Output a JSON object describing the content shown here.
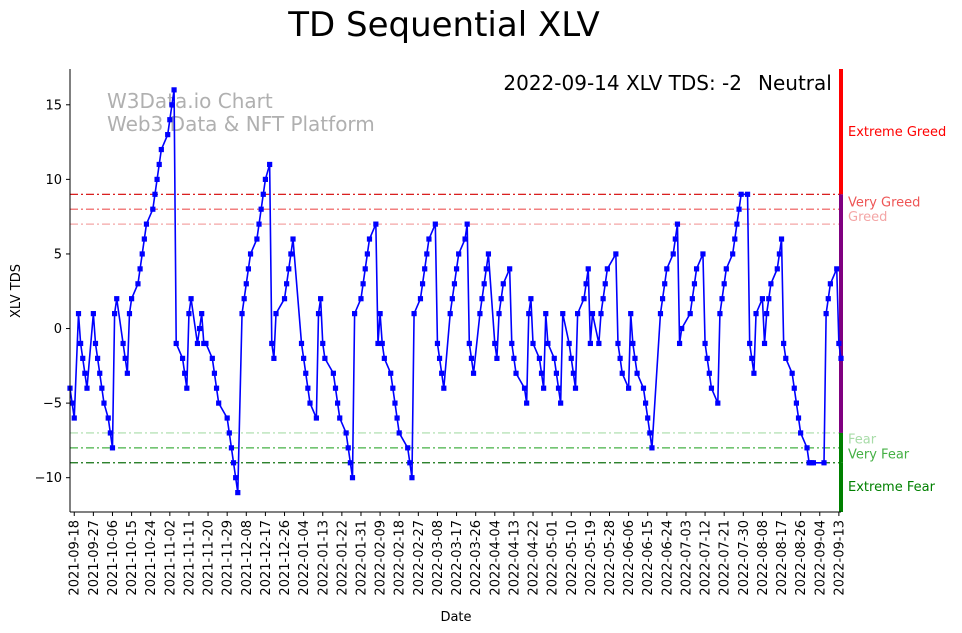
{
  "chart_data": {
    "type": "line",
    "title": "TD Sequential XLV",
    "xlabel": "Date",
    "ylabel": "XLV TDS",
    "ylim": [
      -12.3,
      17.4
    ],
    "yticks": [
      15,
      10,
      5,
      0,
      -5,
      -10
    ],
    "x_start": "2021-09-16",
    "x_end": "2022-09-14",
    "xticks": [
      "2021-09-18",
      "2021-09-27",
      "2021-10-06",
      "2021-10-15",
      "2021-10-24",
      "2021-11-02",
      "2021-11-11",
      "2021-11-20",
      "2021-11-29",
      "2021-12-08",
      "2021-12-17",
      "2021-12-26",
      "2022-01-04",
      "2022-01-13",
      "2022-01-22",
      "2022-01-31",
      "2022-02-09",
      "2022-02-18",
      "2022-02-27",
      "2022-03-08",
      "2022-03-17",
      "2022-03-26",
      "2022-04-04",
      "2022-04-13",
      "2022-04-22",
      "2022-05-01",
      "2022-05-10",
      "2022-05-19",
      "2022-05-28",
      "2022-06-06",
      "2022-06-15",
      "2022-06-24",
      "2022-07-03",
      "2022-07-12",
      "2022-07-21",
      "2022-07-30",
      "2022-08-08",
      "2022-08-17",
      "2022-08-26",
      "2022-09-04",
      "2022-09-13"
    ],
    "series": [
      {
        "name": "XLV TDS",
        "color": "#0000ff",
        "marker": "square",
        "points": [
          [
            "2021-09-16",
            -4
          ],
          [
            "2021-09-17",
            -5
          ],
          [
            "2021-09-18",
            -6
          ],
          [
            "2021-09-20",
            1
          ],
          [
            "2021-09-21",
            -1
          ],
          [
            "2021-09-22",
            -2
          ],
          [
            "2021-09-23",
            -3
          ],
          [
            "2021-09-24",
            -4
          ],
          [
            "2021-09-27",
            1
          ],
          [
            "2021-09-28",
            -1
          ],
          [
            "2021-09-29",
            -2
          ],
          [
            "2021-09-30",
            -3
          ],
          [
            "2021-10-01",
            -4
          ],
          [
            "2021-10-02",
            -5
          ],
          [
            "2021-10-04",
            -6
          ],
          [
            "2021-10-05",
            -7
          ],
          [
            "2021-10-06",
            -8
          ],
          [
            "2021-10-07",
            1
          ],
          [
            "2021-10-08",
            2
          ],
          [
            "2021-10-11",
            -1
          ],
          [
            "2021-10-12",
            -2
          ],
          [
            "2021-10-13",
            -3
          ],
          [
            "2021-10-14",
            1
          ],
          [
            "2021-10-15",
            2
          ],
          [
            "2021-10-18",
            3
          ],
          [
            "2021-10-19",
            4
          ],
          [
            "2021-10-20",
            5
          ],
          [
            "2021-10-21",
            6
          ],
          [
            "2021-10-22",
            7
          ],
          [
            "2021-10-25",
            8
          ],
          [
            "2021-10-26",
            9
          ],
          [
            "2021-10-27",
            10
          ],
          [
            "2021-10-28",
            11
          ],
          [
            "2021-10-29",
            12
          ],
          [
            "2021-11-01",
            13
          ],
          [
            "2021-11-02",
            14
          ],
          [
            "2021-11-03",
            15
          ],
          [
            "2021-11-04",
            16
          ],
          [
            "2021-11-05",
            -1
          ],
          [
            "2021-11-08",
            -2
          ],
          [
            "2021-11-09",
            -3
          ],
          [
            "2021-11-10",
            -4
          ],
          [
            "2021-11-11",
            1
          ],
          [
            "2021-11-12",
            2
          ],
          [
            "2021-11-15",
            -1
          ],
          [
            "2021-11-16",
            0
          ],
          [
            "2021-11-17",
            1
          ],
          [
            "2021-11-18",
            -1
          ],
          [
            "2021-11-19",
            -1
          ],
          [
            "2021-11-22",
            -2
          ],
          [
            "2021-11-23",
            -3
          ],
          [
            "2021-11-24",
            -4
          ],
          [
            "2021-11-25",
            -5
          ],
          [
            "2021-11-29",
            -6
          ],
          [
            "2021-11-30",
            -7
          ],
          [
            "2021-12-01",
            -8
          ],
          [
            "2021-12-02",
            -9
          ],
          [
            "2021-12-03",
            -10
          ],
          [
            "2021-12-04",
            -11
          ],
          [
            "2021-12-06",
            1
          ],
          [
            "2021-12-07",
            2
          ],
          [
            "2021-12-08",
            3
          ],
          [
            "2021-12-09",
            4
          ],
          [
            "2021-12-10",
            5
          ],
          [
            "2021-12-13",
            6
          ],
          [
            "2021-12-14",
            7
          ],
          [
            "2021-12-15",
            8
          ],
          [
            "2021-12-16",
            9
          ],
          [
            "2021-12-17",
            10
          ],
          [
            "2021-12-19",
            11
          ],
          [
            "2021-12-20",
            -1
          ],
          [
            "2021-12-21",
            -2
          ],
          [
            "2021-12-22",
            1
          ],
          [
            "2021-12-26",
            2
          ],
          [
            "2021-12-27",
            3
          ],
          [
            "2021-12-28",
            4
          ],
          [
            "2021-12-29",
            5
          ],
          [
            "2021-12-30",
            6
          ],
          [
            "2022-01-03",
            -1
          ],
          [
            "2022-01-04",
            -2
          ],
          [
            "2022-01-05",
            -3
          ],
          [
            "2022-01-06",
            -4
          ],
          [
            "2022-01-07",
            -5
          ],
          [
            "2022-01-10",
            -6
          ],
          [
            "2022-01-11",
            1
          ],
          [
            "2022-01-12",
            2
          ],
          [
            "2022-01-13",
            -1
          ],
          [
            "2022-01-14",
            -2
          ],
          [
            "2022-01-18",
            -3
          ],
          [
            "2022-01-19",
            -4
          ],
          [
            "2022-01-20",
            -5
          ],
          [
            "2022-01-21",
            -6
          ],
          [
            "2022-01-24",
            -7
          ],
          [
            "2022-01-25",
            -8
          ],
          [
            "2022-01-26",
            -9
          ],
          [
            "2022-01-27",
            -10
          ],
          [
            "2022-01-28",
            1
          ],
          [
            "2022-01-31",
            2
          ],
          [
            "2022-02-01",
            3
          ],
          [
            "2022-02-02",
            4
          ],
          [
            "2022-02-03",
            5
          ],
          [
            "2022-02-04",
            6
          ],
          [
            "2022-02-07",
            7
          ],
          [
            "2022-02-08",
            -1
          ],
          [
            "2022-02-09",
            1
          ],
          [
            "2022-02-10",
            -1
          ],
          [
            "2022-02-11",
            -2
          ],
          [
            "2022-02-14",
            -3
          ],
          [
            "2022-02-15",
            -4
          ],
          [
            "2022-02-16",
            -5
          ],
          [
            "2022-02-17",
            -6
          ],
          [
            "2022-02-18",
            -7
          ],
          [
            "2022-02-22",
            -8
          ],
          [
            "2022-02-23",
            -9
          ],
          [
            "2022-02-24",
            -10
          ],
          [
            "2022-02-25",
            1
          ],
          [
            "2022-02-28",
            2
          ],
          [
            "2022-03-01",
            3
          ],
          [
            "2022-03-02",
            4
          ],
          [
            "2022-03-03",
            5
          ],
          [
            "2022-03-04",
            6
          ],
          [
            "2022-03-07",
            7
          ],
          [
            "2022-03-08",
            -1
          ],
          [
            "2022-03-09",
            -2
          ],
          [
            "2022-03-10",
            -3
          ],
          [
            "2022-03-11",
            -4
          ],
          [
            "2022-03-14",
            1
          ],
          [
            "2022-03-15",
            2
          ],
          [
            "2022-03-16",
            3
          ],
          [
            "2022-03-17",
            4
          ],
          [
            "2022-03-18",
            5
          ],
          [
            "2022-03-21",
            6
          ],
          [
            "2022-03-22",
            7
          ],
          [
            "2022-03-23",
            -1
          ],
          [
            "2022-03-24",
            -2
          ],
          [
            "2022-03-25",
            -3
          ],
          [
            "2022-03-28",
            1
          ],
          [
            "2022-03-29",
            2
          ],
          [
            "2022-03-30",
            3
          ],
          [
            "2022-03-31",
            4
          ],
          [
            "2022-04-01",
            5
          ],
          [
            "2022-04-04",
            -1
          ],
          [
            "2022-04-05",
            -2
          ],
          [
            "2022-04-06",
            1
          ],
          [
            "2022-04-07",
            2
          ],
          [
            "2022-04-08",
            3
          ],
          [
            "2022-04-11",
            4
          ],
          [
            "2022-04-12",
            -1
          ],
          [
            "2022-04-13",
            -2
          ],
          [
            "2022-04-14",
            -3
          ],
          [
            "2022-04-18",
            -4
          ],
          [
            "2022-04-19",
            -5
          ],
          [
            "2022-04-20",
            1
          ],
          [
            "2022-04-21",
            2
          ],
          [
            "2022-04-22",
            -1
          ],
          [
            "2022-04-25",
            -2
          ],
          [
            "2022-04-26",
            -3
          ],
          [
            "2022-04-27",
            -4
          ],
          [
            "2022-04-28",
            1
          ],
          [
            "2022-04-29",
            -1
          ],
          [
            "2022-05-02",
            -2
          ],
          [
            "2022-05-03",
            -3
          ],
          [
            "2022-05-04",
            -4
          ],
          [
            "2022-05-05",
            -5
          ],
          [
            "2022-05-06",
            1
          ],
          [
            "2022-05-09",
            -1
          ],
          [
            "2022-05-10",
            -2
          ],
          [
            "2022-05-11",
            -3
          ],
          [
            "2022-05-12",
            -4
          ],
          [
            "2022-05-13",
            1
          ],
          [
            "2022-05-16",
            2
          ],
          [
            "2022-05-17",
            3
          ],
          [
            "2022-05-18",
            4
          ],
          [
            "2022-05-19",
            -1
          ],
          [
            "2022-05-20",
            1
          ],
          [
            "2022-05-23",
            -1
          ],
          [
            "2022-05-24",
            1
          ],
          [
            "2022-05-25",
            2
          ],
          [
            "2022-05-26",
            3
          ],
          [
            "2022-05-27",
            4
          ],
          [
            "2022-05-31",
            5
          ],
          [
            "2022-06-01",
            -1
          ],
          [
            "2022-06-02",
            -2
          ],
          [
            "2022-06-03",
            -3
          ],
          [
            "2022-06-06",
            -4
          ],
          [
            "2022-06-07",
            1
          ],
          [
            "2022-06-08",
            -1
          ],
          [
            "2022-06-09",
            -2
          ],
          [
            "2022-06-10",
            -3
          ],
          [
            "2022-06-13",
            -4
          ],
          [
            "2022-06-14",
            -5
          ],
          [
            "2022-06-15",
            -6
          ],
          [
            "2022-06-16",
            -7
          ],
          [
            "2022-06-17",
            -8
          ],
          [
            "2022-06-21",
            1
          ],
          [
            "2022-06-22",
            2
          ],
          [
            "2022-06-23",
            3
          ],
          [
            "2022-06-24",
            4
          ],
          [
            "2022-06-27",
            5
          ],
          [
            "2022-06-28",
            6
          ],
          [
            "2022-06-29",
            7
          ],
          [
            "2022-06-30",
            -1
          ],
          [
            "2022-07-01",
            0
          ],
          [
            "2022-07-05",
            1
          ],
          [
            "2022-07-06",
            2
          ],
          [
            "2022-07-07",
            3
          ],
          [
            "2022-07-08",
            4
          ],
          [
            "2022-07-11",
            5
          ],
          [
            "2022-07-12",
            -1
          ],
          [
            "2022-07-13",
            -2
          ],
          [
            "2022-07-14",
            -3
          ],
          [
            "2022-07-15",
            -4
          ],
          [
            "2022-07-18",
            -5
          ],
          [
            "2022-07-19",
            1
          ],
          [
            "2022-07-20",
            2
          ],
          [
            "2022-07-21",
            3
          ],
          [
            "2022-07-22",
            4
          ],
          [
            "2022-07-25",
            5
          ],
          [
            "2022-07-26",
            6
          ],
          [
            "2022-07-27",
            7
          ],
          [
            "2022-07-28",
            8
          ],
          [
            "2022-07-29",
            9
          ],
          [
            "2022-08-01",
            9
          ],
          [
            "2022-08-02",
            -1
          ],
          [
            "2022-08-03",
            -2
          ],
          [
            "2022-08-04",
            -3
          ],
          [
            "2022-08-05",
            1
          ],
          [
            "2022-08-08",
            2
          ],
          [
            "2022-08-09",
            -1
          ],
          [
            "2022-08-10",
            1
          ],
          [
            "2022-08-11",
            2
          ],
          [
            "2022-08-12",
            3
          ],
          [
            "2022-08-15",
            4
          ],
          [
            "2022-08-16",
            5
          ],
          [
            "2022-08-17",
            6
          ],
          [
            "2022-08-18",
            -1
          ],
          [
            "2022-08-19",
            -2
          ],
          [
            "2022-08-22",
            -3
          ],
          [
            "2022-08-23",
            -4
          ],
          [
            "2022-08-24",
            -5
          ],
          [
            "2022-08-25",
            -6
          ],
          [
            "2022-08-26",
            -7
          ],
          [
            "2022-08-29",
            -8
          ],
          [
            "2022-08-30",
            -9
          ],
          [
            "2022-08-31",
            -9
          ],
          [
            "2022-09-01",
            -9
          ],
          [
            "2022-09-06",
            -9
          ],
          [
            "2022-09-07",
            1
          ],
          [
            "2022-09-08",
            2
          ],
          [
            "2022-09-09",
            3
          ],
          [
            "2022-09-12",
            4
          ],
          [
            "2022-09-13",
            -1
          ],
          [
            "2022-09-14",
            -2
          ]
        ]
      }
    ],
    "reference_lines": [
      {
        "y": 9,
        "color": "#d40000",
        "dash": "dashdot",
        "label": "Very Greed"
      },
      {
        "y": 8,
        "color": "#ee5555",
        "dash": "dashdot",
        "label": "Very Greed"
      },
      {
        "y": 7,
        "color": "#f4a6a6",
        "dash": "dashdot",
        "label": "Greed"
      },
      {
        "y": -7,
        "color": "#a8dca8",
        "dash": "dashdot",
        "label": "Fear"
      },
      {
        "y": -8,
        "color": "#45b045",
        "dash": "dashdot",
        "label": "Very Fear"
      },
      {
        "y": -9,
        "color": "#107010",
        "dash": "dashdot",
        "label": "Extreme Fear"
      }
    ],
    "zone_labels": [
      {
        "text": "Extreme Greed",
        "y": 13.2,
        "color": "#ff0000"
      },
      {
        "text": "Very Greed",
        "y": 8.5,
        "color": "#ee5555"
      },
      {
        "text": "Greed",
        "y": 7.5,
        "color": "#f4a6a6"
      },
      {
        "text": "Fear",
        "y": -7.4,
        "color": "#a8dca8"
      },
      {
        "text": "Very Fear",
        "y": -8.4,
        "color": "#45b045"
      },
      {
        "text": "Extreme Fear",
        "y": -10.6,
        "color": "#008000"
      }
    ],
    "zone_bar": [
      {
        "from": 9,
        "to": 17.4,
        "color": "#ff0000"
      },
      {
        "from": -7,
        "to": 9,
        "color": "#800080"
      },
      {
        "from": -12.3,
        "to": -9,
        "color": "#008000"
      },
      {
        "from": -9,
        "to": -7,
        "color": "#008000"
      }
    ],
    "status_text": "2022-09-14 XLV TDS: -2",
    "status_label": "Neutral",
    "status_color": "#800080",
    "watermark_line1": "W3Data.io Chart",
    "watermark_line2": "Web3 Data & NFT Platform",
    "grid": false
  }
}
